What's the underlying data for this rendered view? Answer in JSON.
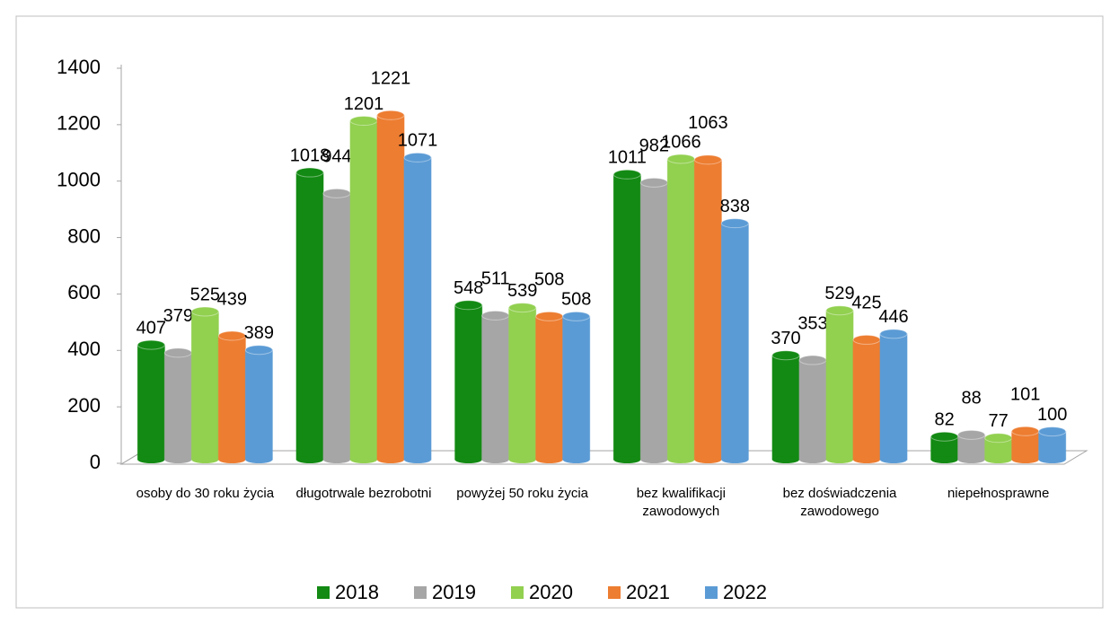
{
  "chart_data": {
    "type": "bar",
    "categories": [
      "osoby do 30 roku życia",
      "długotrwale bezrobotni",
      "powyżej 50 roku życia",
      "bez kwalifikacji zawodowych",
      "bez doświadczenia zawodowego",
      "niepełnosprawne"
    ],
    "series": [
      {
        "name": "2018",
        "color": "#138a13",
        "values": [
          407,
          1018,
          548,
          1011,
          370,
          82
        ]
      },
      {
        "name": "2019",
        "color": "#a6a6a6",
        "values": [
          379,
          944,
          511,
          982,
          353,
          88
        ]
      },
      {
        "name": "2020",
        "color": "#92d050",
        "values": [
          525,
          1201,
          539,
          1066,
          529,
          77
        ]
      },
      {
        "name": "2021",
        "color": "#ed7d31",
        "values": [
          439,
          1221,
          508,
          1063,
          425,
          101
        ]
      },
      {
        "name": "2022",
        "color": "#5b9bd5",
        "values": [
          389,
          1071,
          508,
          838,
          446,
          100
        ]
      }
    ],
    "ylim": [
      0,
      1400
    ],
    "yticks": [
      0,
      200,
      400,
      600,
      800,
      1000,
      1200,
      1400
    ],
    "grid": false,
    "legend": "bottom"
  }
}
